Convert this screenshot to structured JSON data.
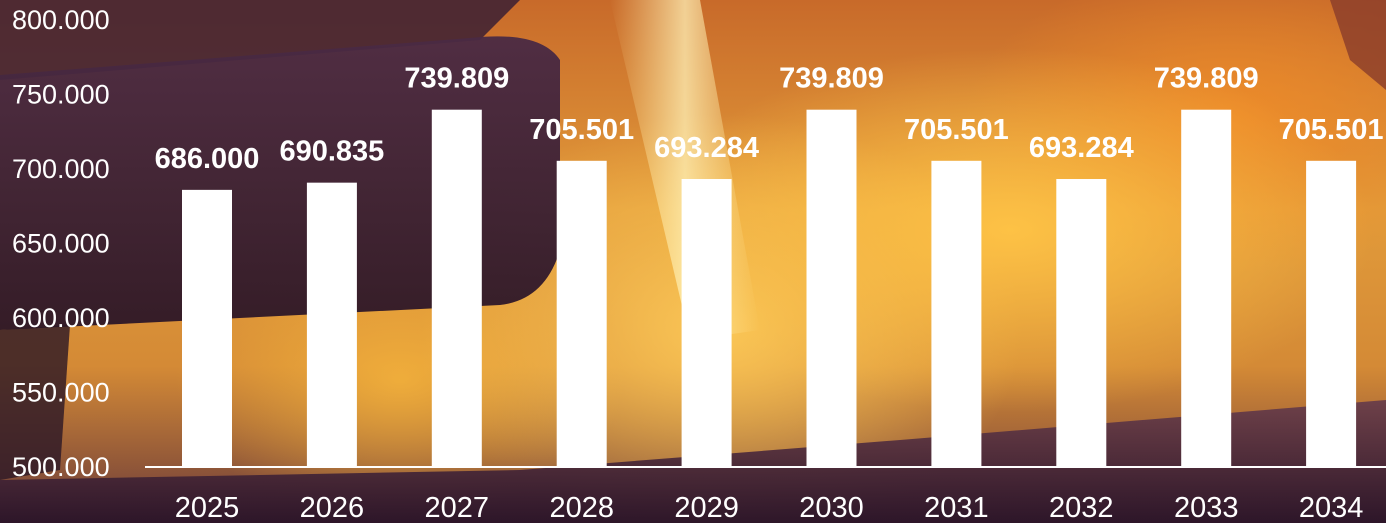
{
  "chart_data": {
    "type": "bar",
    "title": "",
    "xlabel": "",
    "ylabel": "",
    "categories": [
      "2025",
      "2026",
      "2027",
      "2028",
      "2029",
      "2030",
      "2031",
      "2032",
      "2033",
      "2034"
    ],
    "values": [
      686000,
      690835,
      739809,
      705501,
      693284,
      739809,
      705501,
      693284,
      739809,
      705501
    ],
    "data_labels": [
      "686.000",
      "690.835",
      "739.809",
      "705.501",
      "693.284",
      "739.809",
      "705.501",
      "693.284",
      "739.809",
      "705.501"
    ],
    "ylim": [
      500000,
      800000
    ],
    "yticks": [
      500000,
      550000,
      600000,
      650000,
      700000,
      750000,
      800000
    ],
    "ytick_labels": [
      "500.000",
      "550.000",
      "600.000",
      "650.000",
      "700.000",
      "750.000",
      "800.000"
    ],
    "grid": false,
    "legend": "none",
    "colors": {
      "bar": "#ffffff",
      "text": "#ffffff",
      "axis": "#ffffff"
    }
  }
}
